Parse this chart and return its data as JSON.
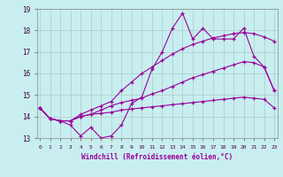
{
  "xlabel": "Windchill (Refroidissement éolien,°C)",
  "background_color": "#c8eef0",
  "grid_color": "#aadddd",
  "line_color": "#990099",
  "xmin": 0,
  "xmax": 23,
  "ymin": 13,
  "ymax": 19,
  "xticks": [
    0,
    1,
    2,
    3,
    4,
    5,
    6,
    7,
    8,
    9,
    10,
    11,
    12,
    13,
    14,
    15,
    16,
    17,
    18,
    19,
    20,
    21,
    22,
    23
  ],
  "yticks": [
    13,
    14,
    15,
    16,
    17,
    18,
    19
  ],
  "series": [
    [
      14.4,
      13.9,
      13.8,
      13.6,
      13.1,
      13.5,
      13.0,
      13.1,
      13.6,
      14.6,
      14.9,
      16.2,
      17.0,
      18.1,
      18.8,
      17.6,
      18.1,
      17.6,
      17.6,
      17.6,
      18.1,
      16.8,
      16.3,
      15.2
    ],
    [
      14.4,
      13.9,
      13.8,
      13.8,
      14.1,
      14.3,
      14.5,
      14.7,
      15.2,
      15.6,
      16.0,
      16.3,
      16.6,
      16.9,
      17.15,
      17.35,
      17.5,
      17.65,
      17.75,
      17.85,
      17.9,
      17.85,
      17.7,
      17.5
    ],
    [
      14.4,
      13.9,
      13.8,
      13.8,
      14.0,
      14.1,
      14.3,
      14.5,
      14.65,
      14.75,
      14.85,
      15.05,
      15.2,
      15.4,
      15.6,
      15.8,
      15.95,
      16.1,
      16.25,
      16.4,
      16.55,
      16.5,
      16.3,
      15.2
    ],
    [
      14.4,
      13.9,
      13.8,
      13.8,
      14.0,
      14.1,
      14.15,
      14.2,
      14.3,
      14.35,
      14.4,
      14.45,
      14.5,
      14.55,
      14.6,
      14.65,
      14.7,
      14.75,
      14.8,
      14.85,
      14.9,
      14.85,
      14.8,
      14.4
    ]
  ]
}
